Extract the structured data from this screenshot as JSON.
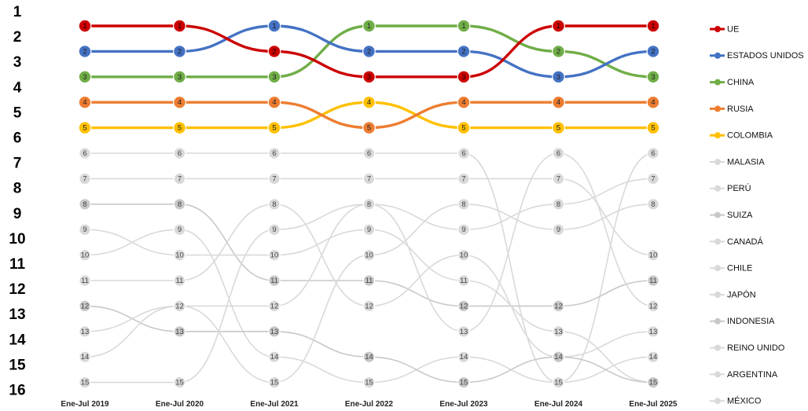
{
  "chart_data": {
    "type": "line",
    "title": "",
    "xlabel": "",
    "ylabel": "",
    "y_axis_ranks": [
      "1",
      "2",
      "3",
      "4",
      "5",
      "6",
      "7",
      "8",
      "9",
      "10",
      "11",
      "12",
      "13",
      "14",
      "15",
      "16"
    ],
    "categories": [
      "Ene-Jul 2019",
      "Ene-Jul 2020",
      "Ene-Jul 2021",
      "Ene-Jul 2022",
      "Ene-Jul 2023",
      "Ene-Jul 2024",
      "Ene-Jul 2025"
    ],
    "legend_position": "right",
    "grid": false,
    "series": [
      {
        "name": "UE",
        "color": "#CC0000",
        "highlight": true,
        "values": [
          1,
          1,
          2,
          3,
          3,
          1,
          1
        ]
      },
      {
        "name": "ESTADOS UNIDOS",
        "color": "#4472C4",
        "highlight": true,
        "values": [
          2,
          2,
          1,
          2,
          2,
          3,
          2
        ]
      },
      {
        "name": "CHINA",
        "color": "#70AD47",
        "highlight": true,
        "values": [
          3,
          3,
          3,
          1,
          1,
          2,
          3
        ]
      },
      {
        "name": "RUSIA",
        "color": "#ED7D31",
        "highlight": true,
        "values": [
          4,
          4,
          4,
          5,
          4,
          4,
          4
        ]
      },
      {
        "name": "COLOMBIA",
        "color": "#FFC000",
        "highlight": true,
        "values": [
          5,
          5,
          5,
          4,
          5,
          5,
          5
        ]
      },
      {
        "name": "MALASIA",
        "color": "#D9D9D9",
        "highlight": false,
        "values": [
          6,
          6,
          6,
          6,
          6,
          15,
          6
        ]
      },
      {
        "name": "PERÚ",
        "color": "#D9D9D9",
        "highlight": false,
        "values": [
          7,
          7,
          7,
          7,
          7,
          7,
          10
        ]
      },
      {
        "name": "SUIZA",
        "color": "#C8C8C8",
        "highlight": false,
        "values": [
          8,
          8,
          11,
          11,
          12,
          12,
          11
        ]
      },
      {
        "name": "CANADÁ",
        "color": "#D9D9D9",
        "highlight": false,
        "values": [
          9,
          10,
          10,
          9,
          11,
          13,
          15
        ]
      },
      {
        "name": "CHILE",
        "color": "#D9D9D9",
        "highlight": false,
        "values": [
          10,
          9,
          14,
          15,
          14,
          15,
          14
        ]
      },
      {
        "name": "JAPÓN",
        "color": "#D9D9D9",
        "highlight": false,
        "values": [
          11,
          11,
          8,
          12,
          10,
          14,
          13
        ]
      },
      {
        "name": "INDONESIA",
        "color": "#C8C8C8",
        "highlight": false,
        "values": [
          12,
          13,
          13,
          14,
          15,
          14,
          15
        ]
      },
      {
        "name": "REINO UNIDO",
        "color": "#D9D9D9",
        "highlight": false,
        "values": [
          13,
          12,
          15,
          10,
          8,
          9,
          8
        ]
      },
      {
        "name": "ARGENTINA",
        "color": "#D9D9D9",
        "highlight": false,
        "values": [
          14,
          12,
          12,
          8,
          9,
          8,
          7
        ]
      },
      {
        "name": "MÉXICO",
        "color": "#D9D9D9",
        "highlight": false,
        "values": [
          15,
          15,
          9,
          8,
          13,
          6,
          12
        ]
      }
    ]
  }
}
